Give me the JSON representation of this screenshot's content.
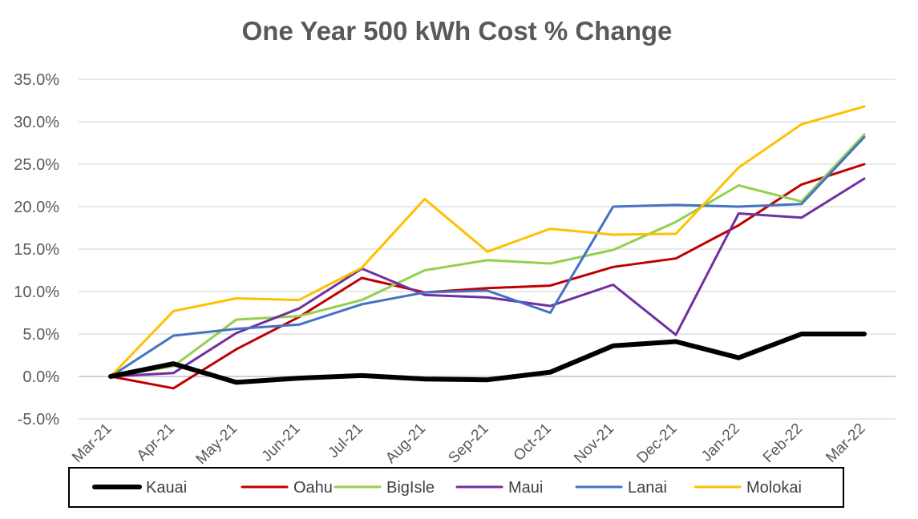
{
  "chart_data": {
    "type": "line",
    "title": "One Year 500 kWh Cost % Change",
    "xlabel": "",
    "ylabel": "",
    "categories": [
      "Mar-21",
      "Apr-21",
      "May-21",
      "Jun-21",
      "Jul-21",
      "Aug-21",
      "Sep-21",
      "Oct-21",
      "Nov-21",
      "Dec-21",
      "Jan-22",
      "Feb-22",
      "Mar-22"
    ],
    "ylim": [
      -0.05,
      0.35
    ],
    "yticks": [
      {
        "value": -0.05,
        "label": "-5.0%"
      },
      {
        "value": 0.0,
        "label": "0.0%"
      },
      {
        "value": 0.05,
        "label": "5.0%"
      },
      {
        "value": 0.1,
        "label": "10.0%"
      },
      {
        "value": 0.15,
        "label": "15.0%"
      },
      {
        "value": 0.2,
        "label": "20.0%"
      },
      {
        "value": 0.25,
        "label": "25.0%"
      },
      {
        "value": 0.3,
        "label": "30.0%"
      },
      {
        "value": 0.35,
        "label": "35.0%"
      }
    ],
    "grid": true,
    "legend_position": "bottom",
    "series": [
      {
        "name": "Kauai",
        "color": "#000000",
        "thick": true,
        "values": [
          0.0,
          0.015,
          -0.007,
          -0.002,
          0.001,
          -0.003,
          -0.004,
          0.005,
          0.036,
          0.041,
          0.022,
          0.05,
          0.05
        ]
      },
      {
        "name": "Oahu",
        "color": "#C00000",
        "thick": false,
        "values": [
          0.0,
          -0.014,
          0.032,
          0.07,
          0.116,
          0.099,
          0.104,
          0.107,
          0.129,
          0.139,
          0.178,
          0.226,
          0.25
        ]
      },
      {
        "name": "BigIsle",
        "color": "#92D050",
        "thick": false,
        "values": [
          0.0,
          0.012,
          0.067,
          0.071,
          0.09,
          0.125,
          0.137,
          0.133,
          0.149,
          0.182,
          0.225,
          0.206,
          0.285
        ]
      },
      {
        "name": "Maui",
        "color": "#7030A0",
        "thick": false,
        "values": [
          0.0,
          0.004,
          0.051,
          0.08,
          0.127,
          0.096,
          0.093,
          0.083,
          0.108,
          0.049,
          0.192,
          0.187,
          0.233
        ]
      },
      {
        "name": "Lanai",
        "color": "#4472C4",
        "thick": false,
        "values": [
          0.0,
          0.048,
          0.056,
          0.061,
          0.085,
          0.099,
          0.101,
          0.075,
          0.2,
          0.202,
          0.2,
          0.203,
          0.282
        ]
      },
      {
        "name": "Molokai",
        "color": "#FFC000",
        "thick": false,
        "values": [
          0.0,
          0.077,
          0.092,
          0.09,
          0.128,
          0.209,
          0.147,
          0.174,
          0.167,
          0.168,
          0.246,
          0.297,
          0.318
        ]
      }
    ]
  }
}
